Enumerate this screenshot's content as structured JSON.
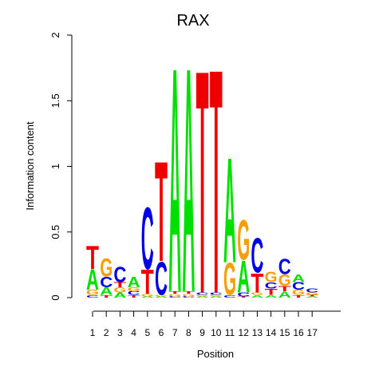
{
  "chart_data": {
    "type": "sequence-logo",
    "title": "RAX",
    "xlabel": "Position",
    "ylabel": "Information content",
    "ylim": [
      0,
      2
    ],
    "y_ticks": [
      "0",
      "0.5",
      "1",
      "1.5",
      "2"
    ],
    "y_tick_values": [
      0,
      0.5,
      1,
      1.5,
      2
    ],
    "positions": [
      "1",
      "2",
      "3",
      "4",
      "5",
      "6",
      "7",
      "8",
      "9",
      "10",
      "11",
      "12",
      "13",
      "14",
      "15",
      "16",
      "17"
    ],
    "letter_colors": {
      "A": "#00e000",
      "C": "#0000e6",
      "G": "#f5a000",
      "T": "#ee0000"
    },
    "columns": [
      [
        [
          "C",
          0.02
        ],
        [
          "G",
          0.04
        ],
        [
          "A",
          0.16
        ],
        [
          "T",
          0.18
        ]
      ],
      [
        [
          "T",
          0.02
        ],
        [
          "A",
          0.06
        ],
        [
          "C",
          0.08
        ],
        [
          "G",
          0.14
        ]
      ],
      [
        [
          "A",
          0.04
        ],
        [
          "G",
          0.04
        ],
        [
          "T",
          0.04
        ],
        [
          "C",
          0.12
        ]
      ],
      [
        [
          "T",
          0.02
        ],
        [
          "C",
          0.03
        ],
        [
          "G",
          0.03
        ],
        [
          "A",
          0.08
        ]
      ],
      [
        [
          "A",
          0.01
        ],
        [
          "G",
          0.02
        ],
        [
          "T",
          0.19
        ],
        [
          "C",
          0.48
        ]
      ],
      [
        [
          "A",
          0.01
        ],
        [
          "G",
          0.01
        ],
        [
          "C",
          0.26
        ],
        [
          "T",
          0.78
        ]
      ],
      [
        [
          "C",
          0.01
        ],
        [
          "G",
          0.02
        ],
        [
          "T",
          0.02
        ],
        [
          "A",
          1.75
        ]
      ],
      [
        [
          "C",
          0.01
        ],
        [
          "G",
          0.02
        ],
        [
          "T",
          0.02
        ],
        [
          "A",
          1.75
        ]
      ],
      [
        [
          "A",
          0.01
        ],
        [
          "G",
          0.01
        ],
        [
          "C",
          0.02
        ],
        [
          "T",
          1.74
        ]
      ],
      [
        [
          "A",
          0.01
        ],
        [
          "G",
          0.01
        ],
        [
          "C",
          0.02
        ],
        [
          "T",
          1.75
        ]
      ],
      [
        [
          "C",
          0.02
        ],
        [
          "G",
          0.25
        ],
        [
          "A",
          0.82
        ]
      ],
      [
        [
          "T",
          0.01
        ],
        [
          "C",
          0.03
        ],
        [
          "A",
          0.25
        ],
        [
          "G",
          0.31
        ]
      ],
      [
        [
          "A",
          0.02
        ],
        [
          "G",
          0.02
        ],
        [
          "T",
          0.15
        ],
        [
          "C",
          0.27
        ]
      ],
      [
        [
          "A",
          0.02
        ],
        [
          "T",
          0.05
        ],
        [
          "C",
          0.05
        ],
        [
          "G",
          0.08
        ]
      ],
      [
        [
          "A",
          0.05
        ],
        [
          "T",
          0.04
        ],
        [
          "G",
          0.09
        ],
        [
          "C",
          0.12
        ]
      ],
      [
        [
          "T",
          0.02
        ],
        [
          "G",
          0.04
        ],
        [
          "C",
          0.06
        ],
        [
          "A",
          0.06
        ]
      ],
      [
        [
          "A",
          0.01
        ],
        [
          "T",
          0.01
        ],
        [
          "G",
          0.02
        ],
        [
          "C",
          0.03
        ]
      ]
    ]
  }
}
